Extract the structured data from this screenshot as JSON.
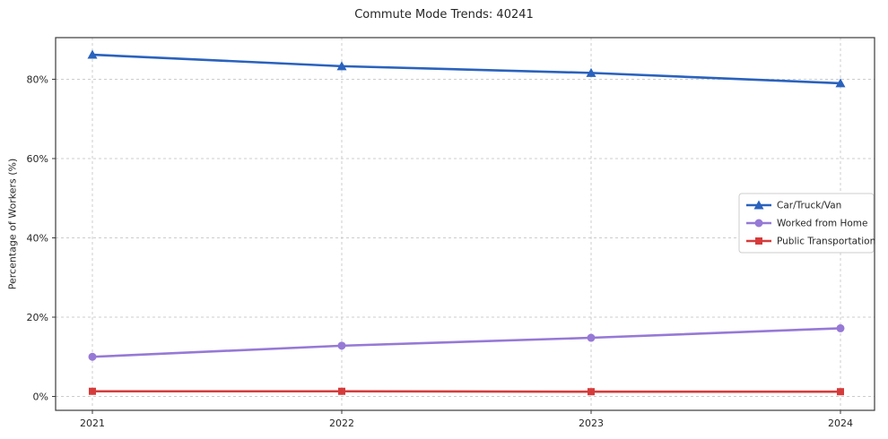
{
  "chart_data": {
    "type": "line",
    "title": "Commute Mode Trends: 40241",
    "xlabel": "",
    "ylabel": "Percentage of Workers (%)",
    "categories": [
      "2021",
      "2022",
      "2023",
      "2024"
    ],
    "series": [
      {
        "name": "Car/Truck/Van",
        "values": [
          86.2,
          83.3,
          81.6,
          79.0
        ],
        "color": "#2a62bd",
        "marker": "triangle"
      },
      {
        "name": "Worked from Home",
        "values": [
          10.0,
          12.8,
          14.8,
          17.2
        ],
        "color": "#9679d6",
        "marker": "circle"
      },
      {
        "name": "Public Transportation",
        "values": [
          1.3,
          1.3,
          1.2,
          1.2
        ],
        "color": "#d63b3b",
        "marker": "square"
      }
    ],
    "yticks": [
      0,
      20,
      40,
      60,
      80
    ],
    "ytick_labels": [
      "0%",
      "20%",
      "40%",
      "60%",
      "80%"
    ],
    "ylim": [
      -3.5,
      90.5
    ],
    "grid": true,
    "grid_color": "#cccccc",
    "axis_color": "#3b3b3b",
    "text_color": "#262626",
    "legend_position": "center right"
  }
}
